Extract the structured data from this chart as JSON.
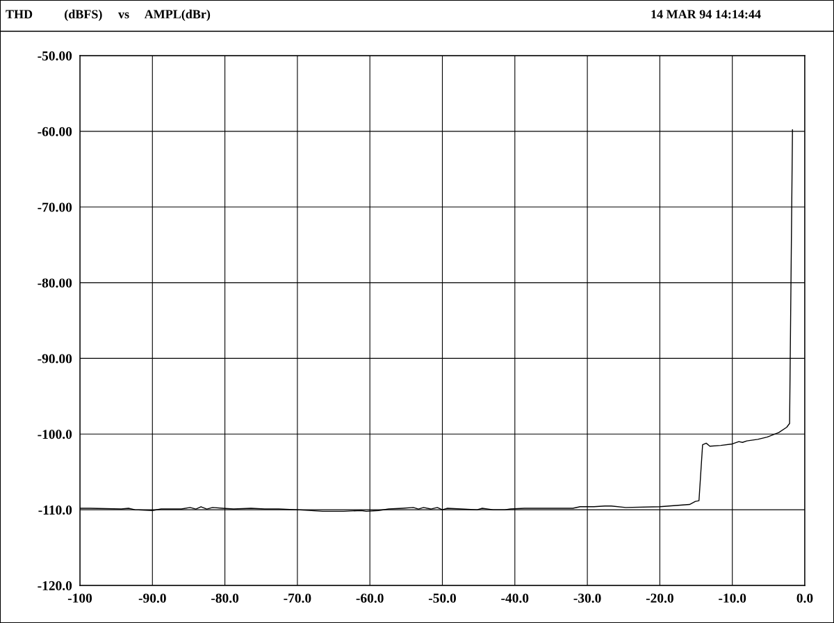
{
  "chart_data": {
    "type": "line",
    "title": "THD          (dBFS)     vs     AMPL(dBr)",
    "annotations": [
      "14 MAR 94 14:14:44"
    ],
    "x": [
      -100,
      -98.6,
      -94.3,
      -93.3,
      -92.4,
      -90,
      -88.8,
      -86,
      -84.8,
      -84,
      -83.3,
      -82.5,
      -81.7,
      -80.3,
      -78.8,
      -76.4,
      -74.5,
      -72.6,
      -70,
      -66.5,
      -63.6,
      -61.2,
      -60.5,
      -58.8,
      -57.4,
      -55.5,
      -54,
      -53.3,
      -52.6,
      -51.6,
      -50.7,
      -50,
      -49.3,
      -47.4,
      -45.2,
      -44.5,
      -43,
      -41.4,
      -40.6,
      -38.7,
      -34.9,
      -32,
      -31,
      -29.1,
      -27.6,
      -26.7,
      -24.7,
      -20,
      -15.9,
      -15.1,
      -14.6,
      -14.1,
      -13.6,
      -13.1,
      -11.6,
      -10,
      -9.1,
      -8.6,
      -8.0,
      -6.5,
      -5.2,
      -3.6,
      -2.5,
      -2.1,
      -1.7
    ],
    "series": [
      {
        "color": "#000000",
        "values": [
          -109.8,
          -109.8,
          -109.9,
          -109.8,
          -110,
          -110.1,
          -109.9,
          -109.9,
          -109.7,
          -109.9,
          -109.6,
          -109.9,
          -109.7,
          -109.8,
          -109.9,
          -109.8,
          -109.9,
          -109.9,
          -110,
          -110.2,
          -110.2,
          -110.1,
          -110.2,
          -110.1,
          -109.9,
          -109.8,
          -109.7,
          -109.9,
          -109.7,
          -109.9,
          -109.7,
          -110,
          -109.8,
          -109.9,
          -110,
          -109.8,
          -110,
          -110,
          -109.9,
          -109.8,
          -109.8,
          -109.8,
          -109.6,
          -109.6,
          -109.5,
          -109.5,
          -109.7,
          -109.6,
          -109.3,
          -108.9,
          -108.8,
          -101.4,
          -101.2,
          -101.6,
          -101.5,
          -101.3,
          -101.0,
          -101.1,
          -100.9,
          -100.7,
          -100.4,
          -99.8,
          -99.1,
          -98.6,
          -59.8
        ]
      }
    ],
    "xlim": [
      -100,
      0
    ],
    "ylim": [
      -120,
      -50
    ],
    "xticks": [
      {
        "value": -100,
        "label": "-100"
      },
      {
        "value": -90,
        "label": "-90.0"
      },
      {
        "value": -80,
        "label": "-80.0"
      },
      {
        "value": -70,
        "label": "-70.0"
      },
      {
        "value": -60,
        "label": "-60.0"
      },
      {
        "value": -50,
        "label": "-50.0"
      },
      {
        "value": -40,
        "label": "-40.0"
      },
      {
        "value": -30,
        "label": "-30.0"
      },
      {
        "value": -20,
        "label": "-20.0"
      },
      {
        "value": -10,
        "label": "-10.0"
      },
      {
        "value": 0,
        "label": "0.0"
      }
    ],
    "yticks": [
      {
        "value": -120,
        "label": "-120.0"
      },
      {
        "value": -110,
        "label": "-110.0"
      },
      {
        "value": -100,
        "label": "-100.0"
      },
      {
        "value": -90,
        "label": "-90.00"
      },
      {
        "value": -80,
        "label": "-80.00"
      },
      {
        "value": -70,
        "label": "-70.00"
      },
      {
        "value": -60,
        "label": "-60.00"
      },
      {
        "value": -50,
        "label": "-50.00"
      }
    ],
    "grid": true,
    "line_style": "solid",
    "marker": "none"
  }
}
